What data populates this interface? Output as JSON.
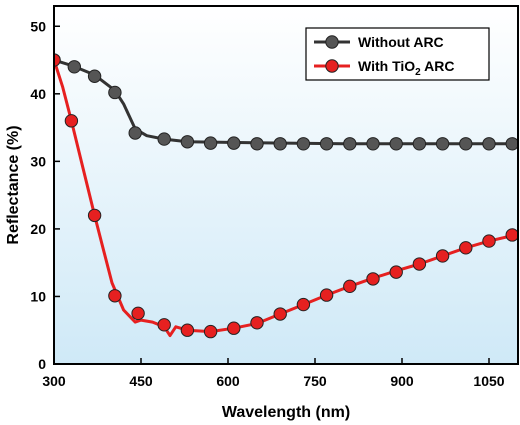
{
  "chart_data": {
    "type": "line",
    "xlabel": "Wavelength (nm)",
    "ylabel": "Reflectance (%)",
    "xlim": [
      300,
      1100
    ],
    "ylim": [
      0,
      53
    ],
    "x_ticks": [
      300,
      450,
      600,
      750,
      900,
      1050
    ],
    "y_ticks": [
      0,
      10,
      20,
      30,
      40,
      50
    ],
    "legend_position": "top-right",
    "background_gradient": [
      "#ffffff",
      "#cfe9f7"
    ],
    "series": [
      {
        "name": "Without ARC",
        "label_main": "Without ARC",
        "label_sub": "",
        "label_tail": "",
        "color": "#333333",
        "marker_color": "#555555",
        "line": [
          [
            300,
            45
          ],
          [
            330,
            44.2
          ],
          [
            370,
            42.8
          ],
          [
            405,
            40.5
          ],
          [
            420,
            38.5
          ],
          [
            440,
            34.8
          ],
          [
            460,
            33.8
          ],
          [
            490,
            33.3
          ],
          [
            530,
            32.9
          ],
          [
            600,
            32.8
          ],
          [
            700,
            32.7
          ],
          [
            800,
            32.6
          ],
          [
            900,
            32.6
          ],
          [
            1000,
            32.6
          ],
          [
            1100,
            32.6
          ]
        ],
        "markers": [
          [
            300,
            45
          ],
          [
            335,
            44
          ],
          [
            370,
            42.6
          ],
          [
            405,
            40.2
          ],
          [
            440,
            34.2
          ],
          [
            490,
            33.3
          ],
          [
            530,
            32.9
          ],
          [
            570,
            32.7
          ],
          [
            610,
            32.7
          ],
          [
            650,
            32.6
          ],
          [
            690,
            32.6
          ],
          [
            730,
            32.6
          ],
          [
            770,
            32.6
          ],
          [
            810,
            32.6
          ],
          [
            850,
            32.6
          ],
          [
            890,
            32.6
          ],
          [
            930,
            32.6
          ],
          [
            970,
            32.6
          ],
          [
            1010,
            32.6
          ],
          [
            1050,
            32.6
          ],
          [
            1090,
            32.6
          ]
        ]
      },
      {
        "name": "With TiO2 ARC",
        "label_main": "With TiO",
        "label_sub": "2",
        "label_tail": " ARC",
        "color": "#e62020",
        "marker_color": "#e62020",
        "line": [
          [
            300,
            45
          ],
          [
            315,
            41
          ],
          [
            330,
            36
          ],
          [
            350,
            29
          ],
          [
            370,
            22
          ],
          [
            385,
            17
          ],
          [
            400,
            12
          ],
          [
            420,
            8
          ],
          [
            440,
            6.2
          ],
          [
            450,
            6.5
          ],
          [
            470,
            6.2
          ],
          [
            490,
            5.5
          ],
          [
            500,
            4.2
          ],
          [
            510,
            5.5
          ],
          [
            530,
            5.0
          ],
          [
            570,
            4.8
          ],
          [
            610,
            5.3
          ],
          [
            650,
            6.0
          ],
          [
            690,
            7.4
          ],
          [
            730,
            8.8
          ],
          [
            770,
            10.2
          ],
          [
            810,
            11.5
          ],
          [
            850,
            12.7
          ],
          [
            890,
            13.8
          ],
          [
            930,
            14.8
          ],
          [
            970,
            16.0
          ],
          [
            1010,
            17.2
          ],
          [
            1050,
            18.2
          ],
          [
            1090,
            19.0
          ],
          [
            1100,
            19.2
          ]
        ],
        "markers": [
          [
            300,
            45
          ],
          [
            330,
            36
          ],
          [
            370,
            22
          ],
          [
            405,
            10.1
          ],
          [
            445,
            7.5
          ],
          [
            490,
            5.8
          ],
          [
            530,
            5.0
          ],
          [
            570,
            4.8
          ],
          [
            610,
            5.3
          ],
          [
            650,
            6.1
          ],
          [
            690,
            7.4
          ],
          [
            730,
            8.8
          ],
          [
            770,
            10.2
          ],
          [
            810,
            11.5
          ],
          [
            850,
            12.6
          ],
          [
            890,
            13.6
          ],
          [
            930,
            14.8
          ],
          [
            970,
            16.0
          ],
          [
            1010,
            17.2
          ],
          [
            1050,
            18.2
          ],
          [
            1090,
            19.1
          ]
        ]
      }
    ]
  }
}
